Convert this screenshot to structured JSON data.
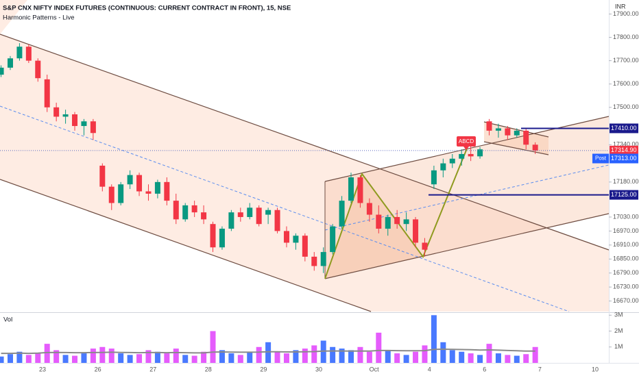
{
  "chart_data": {
    "type": "candlestick",
    "title": "S&P CNX NIFTY INDEX FUTURES (CONTINUOUS: CURRENT CONTRACT IN FRONT), 15, NSE",
    "subtitle": "Harmonic Patterns - Live",
    "currency": "INR",
    "x_labels": [
      "23",
      "26",
      "27",
      "28",
      "29",
      "30",
      "Oct",
      "4",
      "6",
      "7",
      "10"
    ],
    "open": [
      17640,
      17670,
      17710,
      17760,
      17700,
      17620,
      17500,
      17460,
      17470,
      17420,
      17440,
      17250,
      17160,
      17090,
      17170,
      17210,
      17140,
      17130,
      17180,
      17100,
      17020,
      17080,
      17050,
      17000,
      16900,
      16980,
      17050,
      17030,
      17070,
      17040,
      17060,
      16970,
      16920,
      16950,
      16860,
      16820,
      16880,
      16990,
      17100,
      17200,
      17090,
      17040,
      16980,
      17030,
      17000,
      17020,
      16920,
      17170,
      17230,
      17260,
      17280,
      17300,
      17290,
      17440,
      17400,
      17410,
      17380,
      17400,
      17340
    ],
    "high": [
      17680,
      17720,
      17775,
      17770,
      17710,
      17640,
      17520,
      17490,
      17480,
      17450,
      17450,
      17260,
      17170,
      17180,
      17230,
      17220,
      17170,
      17190,
      17200,
      17130,
      17090,
      17100,
      17080,
      17010,
      16990,
      17060,
      17070,
      17090,
      17080,
      17070,
      17070,
      16990,
      16960,
      16960,
      16880,
      16900,
      17000,
      17120,
      17220,
      17210,
      17110,
      17080,
      17040,
      17060,
      17050,
      17030,
      16940,
      17250,
      17280,
      17300,
      17320,
      17340,
      17330,
      17450,
      17430,
      17420,
      17410,
      17410,
      17350
    ],
    "low": [
      17630,
      17660,
      17700,
      17690,
      17610,
      17480,
      17440,
      17430,
      17400,
      17380,
      17360,
      17140,
      17060,
      17080,
      17150,
      17120,
      17100,
      17110,
      17080,
      17000,
      17010,
      17030,
      17000,
      16880,
      16890,
      16970,
      17010,
      17020,
      16990,
      17000,
      16960,
      16900,
      16890,
      16840,
      16800,
      16790,
      16870,
      16980,
      17090,
      17070,
      17010,
      16960,
      16950,
      16980,
      16970,
      16900,
      16860,
      17150,
      17200,
      17240,
      17250,
      17270,
      17280,
      17380,
      17370,
      17360,
      17370,
      17320,
      17300
    ],
    "close": [
      17670,
      17710,
      17760,
      17700,
      17625,
      17500,
      17460,
      17470,
      17420,
      17440,
      17390,
      17160,
      17090,
      17170,
      17210,
      17140,
      17130,
      17180,
      17100,
      17020,
      17080,
      17050,
      17020,
      16900,
      16980,
      17050,
      17030,
      17070,
      17000,
      17060,
      16970,
      16920,
      16950,
      16860,
      16820,
      16880,
      16990,
      17100,
      17200,
      17090,
      17040,
      16980,
      17030,
      17000,
      17020,
      16920,
      16890,
      17230,
      17260,
      17280,
      17300,
      17290,
      17320,
      17400,
      17410,
      17380,
      17400,
      17340,
      17314.9
    ],
    "up_color": "#089981",
    "down_color": "#f23645",
    "ylim": [
      16625,
      17960
    ],
    "yticks": [
      {
        "value": 17900,
        "label": "17900.00"
      },
      {
        "value": 17800,
        "label": "17800.00"
      },
      {
        "value": 17700,
        "label": "17700.00"
      },
      {
        "value": 17600,
        "label": "17600.00"
      },
      {
        "value": 17500,
        "label": "17500.00"
      },
      {
        "value": 17340,
        "label": "17340.00"
      },
      {
        "value": 17180,
        "label": "17180.00"
      },
      {
        "value": 17030,
        "label": "17030.00"
      },
      {
        "value": 16970,
        "label": "16970.00"
      },
      {
        "value": 16910,
        "label": "16910.00"
      },
      {
        "value": 16850,
        "label": "16850.00"
      },
      {
        "value": 16790,
        "label": "16790.00"
      },
      {
        "value": 16730,
        "label": "16730.00"
      },
      {
        "value": 16670,
        "label": "16670.00"
      }
    ],
    "grid": false,
    "levels": [
      {
        "value": 17410,
        "label": "17410.00",
        "color": "#1a1a8c"
      },
      {
        "value": 17125,
        "label": "17125.00",
        "color": "#1a1a8c"
      }
    ],
    "last_price": {
      "value": 17314.9,
      "label": "17314.90",
      "color": "#f23645"
    },
    "post_price": {
      "value": 17313,
      "label": "17313.00",
      "tag": "Post",
      "color": "#2962ff"
    },
    "pattern_label": "ABCD",
    "volume": {
      "title": "Vol",
      "values": [
        400000,
        550000,
        700000,
        500000,
        600000,
        1200000,
        800000,
        500000,
        450000,
        600000,
        900000,
        1000000,
        900000,
        600000,
        500000,
        550000,
        800000,
        700000,
        600000,
        900000,
        500000,
        450000,
        700000,
        2000000,
        800000,
        600000,
        500000,
        650000,
        1000000,
        1300000,
        700000,
        600000,
        800000,
        900000,
        1100000,
        1400000,
        1000000,
        900000,
        800000,
        1000000,
        700000,
        1900000,
        800000,
        600000,
        500000,
        700000,
        1100000,
        3000000,
        1300000,
        800000,
        700000,
        600000,
        500000,
        1200000,
        600000,
        500000,
        450000,
        550000,
        1000000
      ],
      "ma": [
        600000,
        600000,
        610000,
        600000,
        610000,
        650000,
        660000,
        650000,
        640000,
        640000,
        650000,
        660000,
        670000,
        660000,
        650000,
        640000,
        650000,
        650000,
        640000,
        650000,
        640000,
        630000,
        630000,
        680000,
        690000,
        680000,
        670000,
        670000,
        680000,
        700000,
        700000,
        690000,
        690000,
        700000,
        710000,
        740000,
        750000,
        750000,
        740000,
        750000,
        740000,
        780000,
        780000,
        770000,
        760000,
        760000,
        770000,
        850000,
        860000,
        850000,
        840000,
        830000,
        810000,
        820000,
        800000,
        780000,
        760000,
        740000,
        740000
      ],
      "up_color": "#2962ff",
      "down_color": "#e040fb",
      "ma_color": "#8a8a8a",
      "ylim": [
        0,
        3100000
      ],
      "yticks": [
        {
          "value": 3000000,
          "label": "3M"
        },
        {
          "value": 2000000,
          "label": "2M"
        },
        {
          "value": 1000000,
          "label": "1M"
        }
      ]
    }
  }
}
